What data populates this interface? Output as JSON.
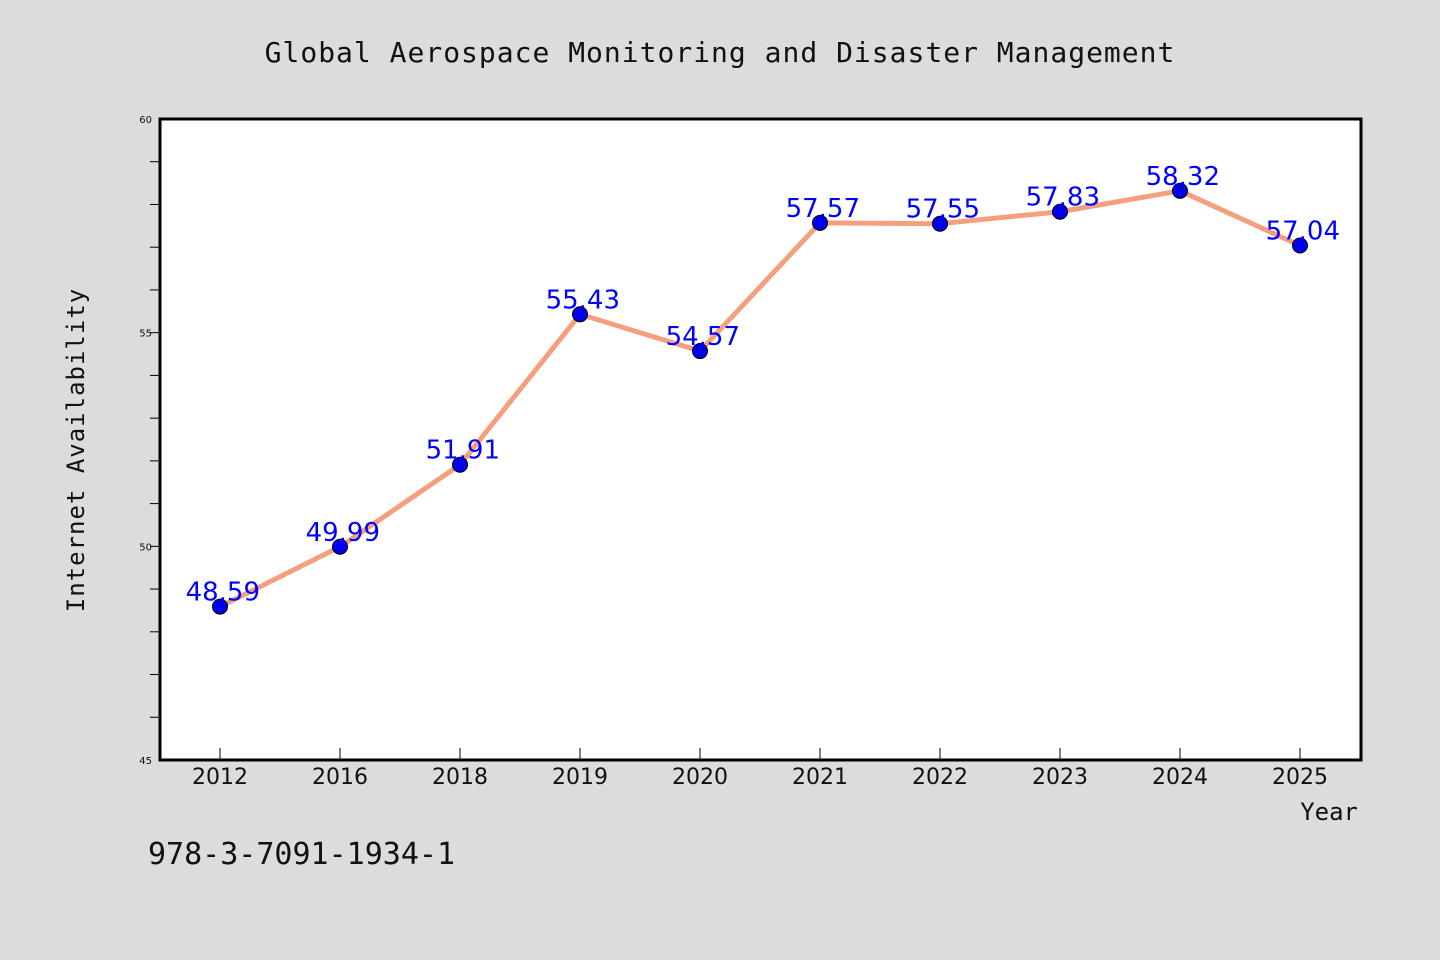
{
  "chart_data": {
    "type": "line",
    "title": "Global Aerospace Monitoring and Disaster Management",
    "xlabel": "Year",
    "ylabel": "Internet Availability",
    "categories": [
      "2012",
      "2016",
      "2018",
      "2019",
      "2020",
      "2021",
      "2022",
      "2023",
      "2024",
      "2025"
    ],
    "series": [
      {
        "values": [
          48.59,
          49.99,
          51.91,
          55.43,
          54.57,
          57.57,
          57.55,
          57.83,
          58.32,
          57.04
        ],
        "data_labels": [
          "48.59",
          "49.99",
          "51.91",
          "55.43",
          "54.57",
          "57.57",
          "57.55",
          "57.83",
          "58.32",
          "57.04"
        ],
        "line_color": "#f4a07f",
        "marker_color": "#0000ee",
        "label_color": "#0000ff"
      }
    ],
    "ylim": [
      45,
      60
    ],
    "yticks_major": [
      "45",
      "50",
      "55",
      "60"
    ],
    "ytick_step_minor": 1,
    "grid": false,
    "legend": "none"
  },
  "footer_text": "978-3-7091-1934-1",
  "colors": {
    "background": "#dcdcdc",
    "plot_background": "#ffffff",
    "axis": "#000000"
  }
}
